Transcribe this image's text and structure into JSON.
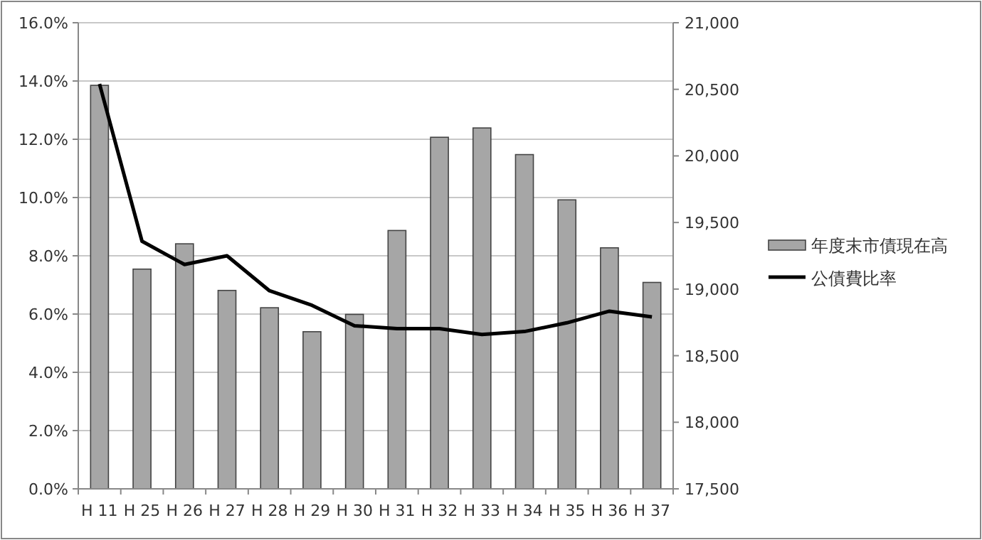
{
  "chart_data": {
    "type": "bar",
    "categories": [
      "H 11",
      "H 25",
      "H 26",
      "H 27",
      "H 28",
      "H 29",
      "H 30",
      "H 31",
      "H 32",
      "H 33",
      "H 34",
      "H 35",
      "H 36",
      "H 37"
    ],
    "series": [
      {
        "name": "年度末市債現在高",
        "axis": "y2",
        "color": "#a6a6a6",
        "values": [
          20530,
          19150,
          19340,
          18990,
          18860,
          18680,
          18810,
          19440,
          20140,
          20210,
          20010,
          19670,
          19310,
          19050
        ]
      },
      {
        "name": "公債費比率",
        "type": "line",
        "axis": "y",
        "color": "#000000",
        "values": [
          13.9,
          8.5,
          7.7,
          8.0,
          6.8,
          6.3,
          5.6,
          5.5,
          5.5,
          5.3,
          5.4,
          5.7,
          6.1,
          5.9
        ]
      }
    ],
    "ylim": [
      0,
      16
    ],
    "yticks": [
      {
        "value": 0,
        "label": "0.0%"
      },
      {
        "value": 2,
        "label": "2.0%"
      },
      {
        "value": 4,
        "label": "4.0%"
      },
      {
        "value": 6,
        "label": "6.0%"
      },
      {
        "value": 8,
        "label": "8.0%"
      },
      {
        "value": 10,
        "label": "10.0%"
      },
      {
        "value": 12,
        "label": "12.0%"
      },
      {
        "value": 14,
        "label": "14.0%"
      },
      {
        "value": 16,
        "label": "16.0%"
      }
    ],
    "y2lim": [
      17500,
      21000
    ],
    "y2ticks": [
      {
        "value": 17500,
        "label": "17,500"
      },
      {
        "value": 18000,
        "label": "18,000"
      },
      {
        "value": 18500,
        "label": "18,500"
      },
      {
        "value": 19000,
        "label": "19,000"
      },
      {
        "value": 19500,
        "label": "19,500"
      },
      {
        "value": 20000,
        "label": "20,000"
      },
      {
        "value": 20500,
        "label": "20,500"
      },
      {
        "value": 21000,
        "label": "21,000"
      }
    ],
    "grid": "y",
    "legend": "right",
    "marker": "none",
    "line_style": "solid"
  }
}
